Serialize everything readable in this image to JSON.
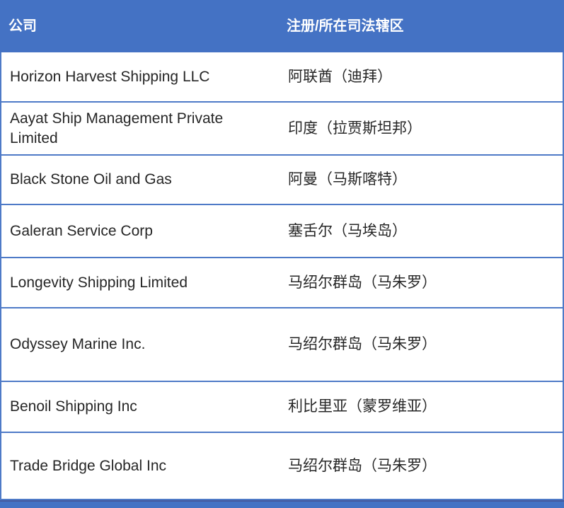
{
  "table": {
    "header": {
      "company_label": "公司",
      "jurisdiction_label": "注册/所在司法辖区"
    },
    "rows": [
      {
        "company": "Horizon Harvest Shipping LLC",
        "jurisdiction": "阿联酋（迪拜）"
      },
      {
        "company": "Aayat Ship Management Private Limited",
        "jurisdiction": "印度（拉贾斯坦邦）"
      },
      {
        "company": "Black Stone Oil and Gas",
        "jurisdiction": "阿曼（马斯喀特）"
      },
      {
        "company": "Galeran Service Corp",
        "jurisdiction": "塞舌尔（马埃岛）"
      },
      {
        "company": "Longevity Shipping Limited",
        "jurisdiction": "马绍尔群岛（马朱罗）"
      },
      {
        "company": "Odyssey Marine Inc.",
        "jurisdiction": "马绍尔群岛（马朱罗）"
      },
      {
        "company": "Benoil Shipping Inc",
        "jurisdiction": "利比里亚（蒙罗维亚）"
      },
      {
        "company": "Trade Bridge Global Inc",
        "jurisdiction": "马绍尔群岛（马朱罗）"
      }
    ]
  },
  "colors": {
    "header_bg": "#4472c4",
    "border_blue": "#4e7ac7",
    "text_dark": "#262626",
    "strip_blue": "#4472c4",
    "strip_edge": "#44599e"
  }
}
